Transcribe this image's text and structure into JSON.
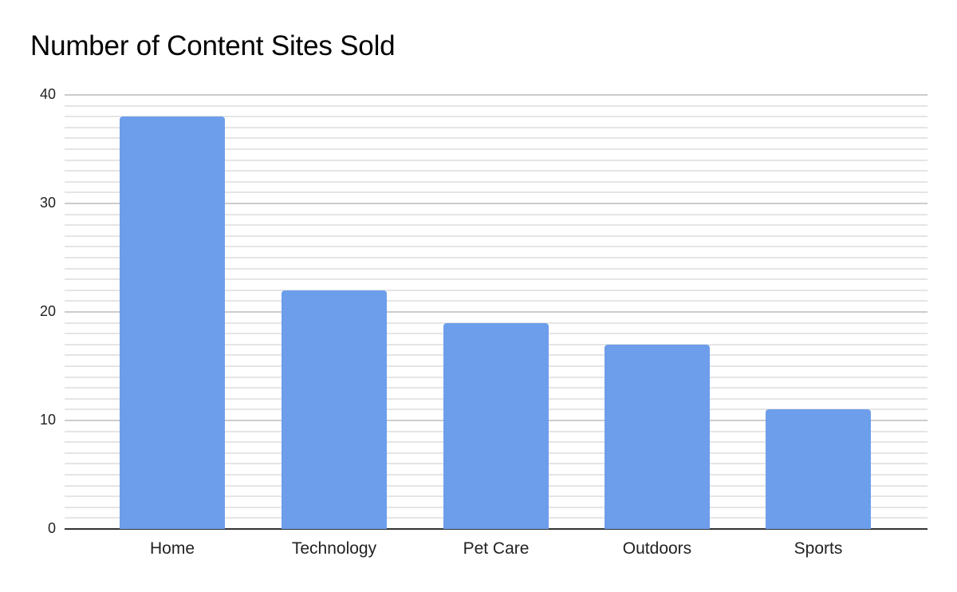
{
  "chart_data": {
    "type": "bar",
    "title": "Number of Content Sites Sold",
    "xlabel": "",
    "ylabel": "",
    "categories": [
      "Home",
      "Technology",
      "Pet Care",
      "Outdoors",
      "Sports"
    ],
    "values": [
      38,
      22,
      19,
      17,
      11
    ],
    "ylim": [
      0,
      40
    ],
    "yticks": [
      "0",
      "10",
      "20",
      "30",
      "40"
    ],
    "grid": true,
    "minor_grid_step": 1,
    "bar_color": "#6d9eeb",
    "legend": null
  },
  "title": "Number of Content Sites Sold",
  "yticks": {
    "t0": "0",
    "t10": "10",
    "t20": "20",
    "t30": "30",
    "t40": "40"
  },
  "xlabels": {
    "c0": "Home",
    "c1": "Technology",
    "c2": "Pet Care",
    "c3": "Outdoors",
    "c4": "Sports"
  }
}
